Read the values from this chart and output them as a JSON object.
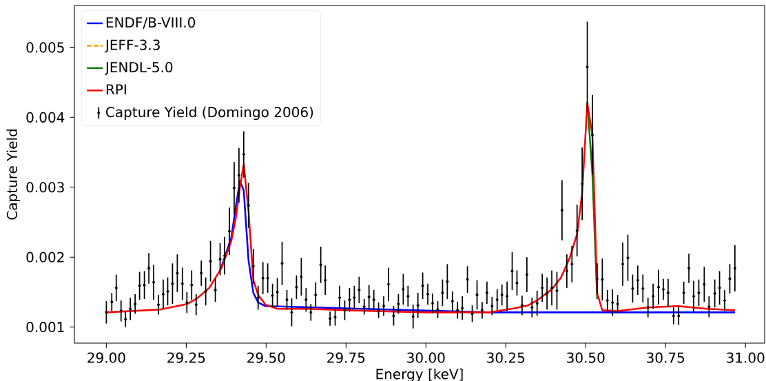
{
  "chart_data": {
    "type": "line",
    "xlabel": "Energy [keV]",
    "ylabel": "Capture Yield",
    "xlim": [
      28.9,
      31.06
    ],
    "ylim": [
      0.00077,
      0.0056
    ],
    "xticks": [
      {
        "value": 29.0,
        "label": "29.00"
      },
      {
        "value": 29.25,
        "label": "29.25"
      },
      {
        "value": 29.5,
        "label": "29.50"
      },
      {
        "value": 29.75,
        "label": "29.75"
      },
      {
        "value": 30.0,
        "label": "30.00"
      },
      {
        "value": 30.25,
        "label": "30.25"
      },
      {
        "value": 30.5,
        "label": "30.50"
      },
      {
        "value": 30.75,
        "label": "30.75"
      },
      {
        "value": 31.0,
        "label": "31.00"
      }
    ],
    "yticks": [
      0.001,
      0.002,
      0.003,
      0.004,
      0.005
    ],
    "legend": "top left",
    "grid": false,
    "series": [
      {
        "name": "ENDF/B-VIII.0",
        "color": "#0000ff",
        "line_style": "solid",
        "marker": "none",
        "x": [
          29.36,
          29.391,
          29.406,
          29.418,
          29.43,
          29.445,
          29.46,
          29.475,
          29.498,
          30.2,
          30.5,
          30.967
        ],
        "values": [
          0.00186,
          0.00228,
          0.00275,
          0.00309,
          0.00295,
          0.00195,
          0.00149,
          0.00135,
          0.0013,
          0.00121,
          0.00121,
          0.00121
        ]
      },
      {
        "name": "JEFF-3.3",
        "color": "#ffa500",
        "line_style": "dashed",
        "marker": "none"
      },
      {
        "name": "JENDL-5.0",
        "color": "#008000",
        "line_style": "solid",
        "marker": "none",
        "x": [
          30.505,
          30.521,
          30.536
        ],
        "values": [
          0.00422,
          0.00319,
          0.0014
        ]
      },
      {
        "name": "RPI",
        "color": "#ff0000",
        "line_style": "solid",
        "marker": "none",
        "x": [
          29.0,
          29.169,
          29.253,
          29.284,
          29.322,
          29.36,
          29.391,
          29.406,
          29.418,
          29.43,
          29.445,
          29.46,
          29.475,
          29.498,
          29.536,
          29.628,
          29.82,
          30.0,
          30.2,
          30.28,
          30.32,
          30.351,
          30.394,
          30.423,
          30.451,
          30.473,
          30.489,
          30.505,
          30.521,
          30.536,
          30.552,
          30.602,
          30.695,
          30.788,
          30.881,
          30.967
        ],
        "values": [
          0.00121,
          0.00125,
          0.00133,
          0.00141,
          0.00156,
          0.00184,
          0.00223,
          0.00258,
          0.003,
          0.00333,
          0.00265,
          0.00167,
          0.00146,
          0.00132,
          0.00126,
          0.00126,
          0.00123,
          0.00121,
          0.00121,
          0.00127,
          0.00131,
          0.00139,
          0.00154,
          0.00171,
          0.002,
          0.00233,
          0.00292,
          0.0042,
          0.00375,
          0.00148,
          0.00124,
          0.00123,
          0.00128,
          0.0013,
          0.00126,
          0.00124
        ]
      },
      {
        "name": "Capture Yield (Domingo 2006)",
        "type": "scatter",
        "color": "#000000",
        "marker": "circle",
        "x": [
          29.0,
          29.017,
          29.031,
          29.046,
          29.06,
          29.075,
          29.09,
          29.104,
          29.119,
          29.133,
          29.148,
          29.163,
          29.178,
          29.192,
          29.207,
          29.222,
          29.238,
          29.252,
          29.267,
          29.281,
          29.297,
          29.311,
          29.326,
          29.341,
          29.356,
          29.37,
          29.385,
          29.4,
          29.415,
          29.43,
          29.445,
          29.46,
          29.475,
          29.49,
          29.505,
          29.52,
          29.535,
          29.55,
          29.565,
          29.58,
          29.595,
          29.61,
          29.625,
          29.64,
          29.655,
          29.671,
          29.685,
          29.7,
          29.716,
          29.73,
          29.746,
          29.761,
          29.776,
          29.791,
          29.807,
          29.822,
          29.837,
          29.852,
          29.868,
          29.883,
          29.899,
          29.914,
          29.929,
          29.944,
          29.96,
          29.975,
          29.99,
          30.006,
          30.021,
          30.037,
          30.052,
          30.067,
          30.083,
          30.099,
          30.114,
          30.13,
          30.145,
          30.16,
          30.176,
          30.191,
          30.207,
          30.223,
          30.238,
          30.254,
          30.27,
          30.285,
          30.301,
          30.316,
          30.332,
          30.348,
          30.364,
          30.379,
          30.394,
          30.41,
          30.426,
          30.441,
          30.457,
          30.473,
          30.489,
          30.505,
          30.521,
          30.536,
          30.552,
          30.568,
          30.584,
          30.6,
          30.616,
          30.632,
          30.647,
          30.663,
          30.679,
          30.695,
          30.711,
          30.728,
          30.743,
          30.758,
          30.775,
          30.791,
          30.807,
          30.823,
          30.838,
          30.854,
          30.871,
          30.886,
          30.904,
          30.919,
          30.935,
          30.951,
          30.967
        ],
        "values": [
          0.00121,
          0.00136,
          0.00156,
          0.00123,
          0.00111,
          0.00126,
          0.00133,
          0.00159,
          0.0016,
          0.00184,
          0.00164,
          0.00132,
          0.00147,
          0.00151,
          0.00162,
          0.00177,
          0.00162,
          0.00135,
          0.0016,
          0.00132,
          0.00177,
          0.00151,
          0.00194,
          0.00153,
          0.00197,
          0.00202,
          0.00237,
          0.00299,
          0.00317,
          0.00347,
          0.00274,
          0.00187,
          0.00142,
          0.0017,
          0.0017,
          0.00145,
          0.0015,
          0.00191,
          0.00139,
          0.00121,
          0.00157,
          0.00172,
          0.00139,
          0.00121,
          0.00146,
          0.00189,
          0.00167,
          0.00112,
          0.00114,
          0.00142,
          0.00124,
          0.00139,
          0.00142,
          0.00153,
          0.00129,
          0.00143,
          0.00139,
          0.00124,
          0.0013,
          0.00161,
          0.00116,
          0.00133,
          0.00154,
          0.00144,
          0.00115,
          0.00131,
          0.00159,
          0.00147,
          0.00134,
          0.00125,
          0.00149,
          0.00165,
          0.00137,
          0.00124,
          0.00127,
          0.00168,
          0.00119,
          0.00146,
          0.00124,
          0.00149,
          0.0013,
          0.00139,
          0.00146,
          0.00144,
          0.0018,
          0.00163,
          0.00131,
          0.00175,
          0.00128,
          0.00134,
          0.00156,
          0.00148,
          0.00156,
          0.00152,
          0.00267,
          0.0018,
          0.0019,
          0.00238,
          0.00305,
          0.00472,
          0.00375,
          0.00169,
          0.00168,
          0.00138,
          0.00135,
          0.00133,
          0.0019,
          0.00199,
          0.00155,
          0.00167,
          0.00155,
          0.00128,
          0.00144,
          0.00157,
          0.00154,
          0.00149,
          0.00116,
          0.00116,
          0.00149,
          0.00184,
          0.00144,
          0.00149,
          0.00161,
          0.00129,
          0.00148,
          0.00156,
          0.00138,
          0.00169,
          0.00184
        ],
        "errors": [
          0.00016,
          0.00013,
          0.00019,
          0.00015,
          0.00011,
          0.00016,
          0.00014,
          0.0002,
          0.0002,
          0.00022,
          0.00025,
          0.00014,
          0.00021,
          0.0002,
          0.00029,
          0.00027,
          0.00023,
          0.00015,
          0.00021,
          0.00015,
          0.00018,
          0.0002,
          0.00029,
          0.00017,
          0.00023,
          0.00027,
          0.00034,
          0.00037,
          0.00039,
          0.00033,
          0.00032,
          0.00025,
          0.00017,
          0.00023,
          0.00021,
          0.00017,
          0.0002,
          0.00031,
          0.00014,
          0.0002,
          0.00017,
          0.00027,
          0.00017,
          0.00012,
          0.00018,
          0.00026,
          0.00021,
          0.0001,
          0.00012,
          0.00017,
          0.00014,
          0.00017,
          0.00017,
          0.00019,
          0.00011,
          0.00017,
          0.00014,
          0.00011,
          0.00014,
          0.00024,
          0.00014,
          0.00014,
          0.00022,
          0.00015,
          0.00017,
          0.00018,
          0.00019,
          0.00015,
          0.00014,
          0.00012,
          0.00019,
          0.00025,
          0.00014,
          0.00012,
          0.00017,
          0.00019,
          0.00012,
          0.00021,
          0.00012,
          0.00016,
          0.00013,
          0.00015,
          0.00015,
          0.00021,
          0.00027,
          0.00018,
          0.00014,
          0.00025,
          0.00014,
          0.00018,
          0.0002,
          0.00023,
          0.00025,
          0.00027,
          0.00043,
          0.00024,
          0.00026,
          0.00037,
          0.00052,
          0.00065,
          0.00057,
          0.00022,
          0.0003,
          0.00015,
          0.00019,
          0.00013,
          0.00031,
          0.00033,
          0.0002,
          0.00021,
          0.0002,
          0.00014,
          0.00018,
          0.00025,
          0.00015,
          0.0002,
          0.00012,
          0.00013,
          0.00016,
          0.00021,
          0.00022,
          0.00019,
          0.00025,
          0.00015,
          0.0002,
          0.00024,
          0.00015,
          0.00021,
          0.00033
        ]
      }
    ]
  }
}
